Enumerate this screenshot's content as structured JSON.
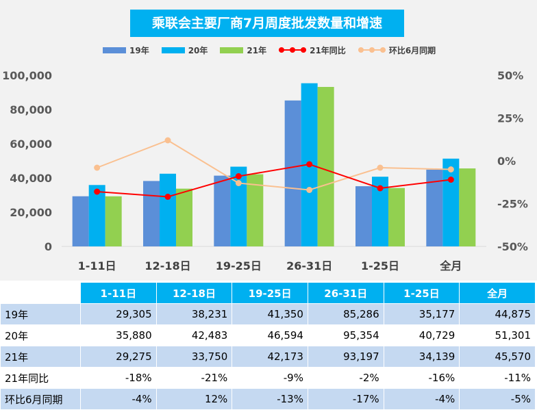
{
  "chart_data": {
    "type": "bar",
    "title": "乘联会主要厂商7月周度批发数量和增速",
    "categories": [
      "1-11日",
      "12-18日",
      "19-25日",
      "26-31日",
      "1-25日",
      "全月"
    ],
    "series": [
      {
        "name": "19年",
        "kind": "bar",
        "color": "#5b8fd8",
        "values": [
          29305,
          38231,
          41350,
          85286,
          35177,
          44875
        ]
      },
      {
        "name": "20年",
        "kind": "bar",
        "color": "#00b0f0",
        "values": [
          35880,
          42483,
          46594,
          95354,
          40729,
          51301
        ]
      },
      {
        "name": "21年",
        "kind": "bar",
        "color": "#92d050",
        "values": [
          29275,
          33750,
          42173,
          93197,
          34139,
          45570
        ]
      },
      {
        "name": "21年同比",
        "kind": "line",
        "axis": "right",
        "color": "#ff0000",
        "values": [
          -18,
          -21,
          -9,
          -2,
          -16,
          -11
        ]
      },
      {
        "name": "环比6月同期",
        "kind": "line",
        "axis": "right",
        "color": "#fac090",
        "values": [
          -4,
          12,
          -13,
          -17,
          -4,
          -5
        ]
      }
    ],
    "ylim": [
      0,
      100000
    ],
    "y_ticks": [
      "0",
      "20,000",
      "40,000",
      "60,000",
      "80,000",
      "100,000"
    ],
    "y2lim": [
      -50,
      50
    ],
    "y2_ticks": [
      "-50%",
      "-25%",
      "0%",
      "25%",
      "50%"
    ],
    "legend_position": "top",
    "grid": false
  },
  "table": {
    "headers": [
      "1-11日",
      "12-18日",
      "19-25日",
      "26-31日",
      "1-25日",
      "全月"
    ],
    "rows": [
      {
        "label": "19年",
        "cells": [
          "29,305",
          "38,231",
          "41,350",
          "85,286",
          "35,177",
          "44,875"
        ]
      },
      {
        "label": "20年",
        "cells": [
          "35,880",
          "42,483",
          "46,594",
          "95,354",
          "40,729",
          "51,301"
        ]
      },
      {
        "label": "21年",
        "cells": [
          "29,275",
          "33,750",
          "42,173",
          "93,197",
          "34,139",
          "45,570"
        ]
      },
      {
        "label": "21年同比",
        "cells": [
          "-18%",
          "-21%",
          "-9%",
          "-2%",
          "-16%",
          "-11%"
        ]
      },
      {
        "label": "环比6月同期",
        "cells": [
          "-4%",
          "12%",
          "-13%",
          "-17%",
          "-4%",
          "-5%"
        ]
      }
    ]
  }
}
